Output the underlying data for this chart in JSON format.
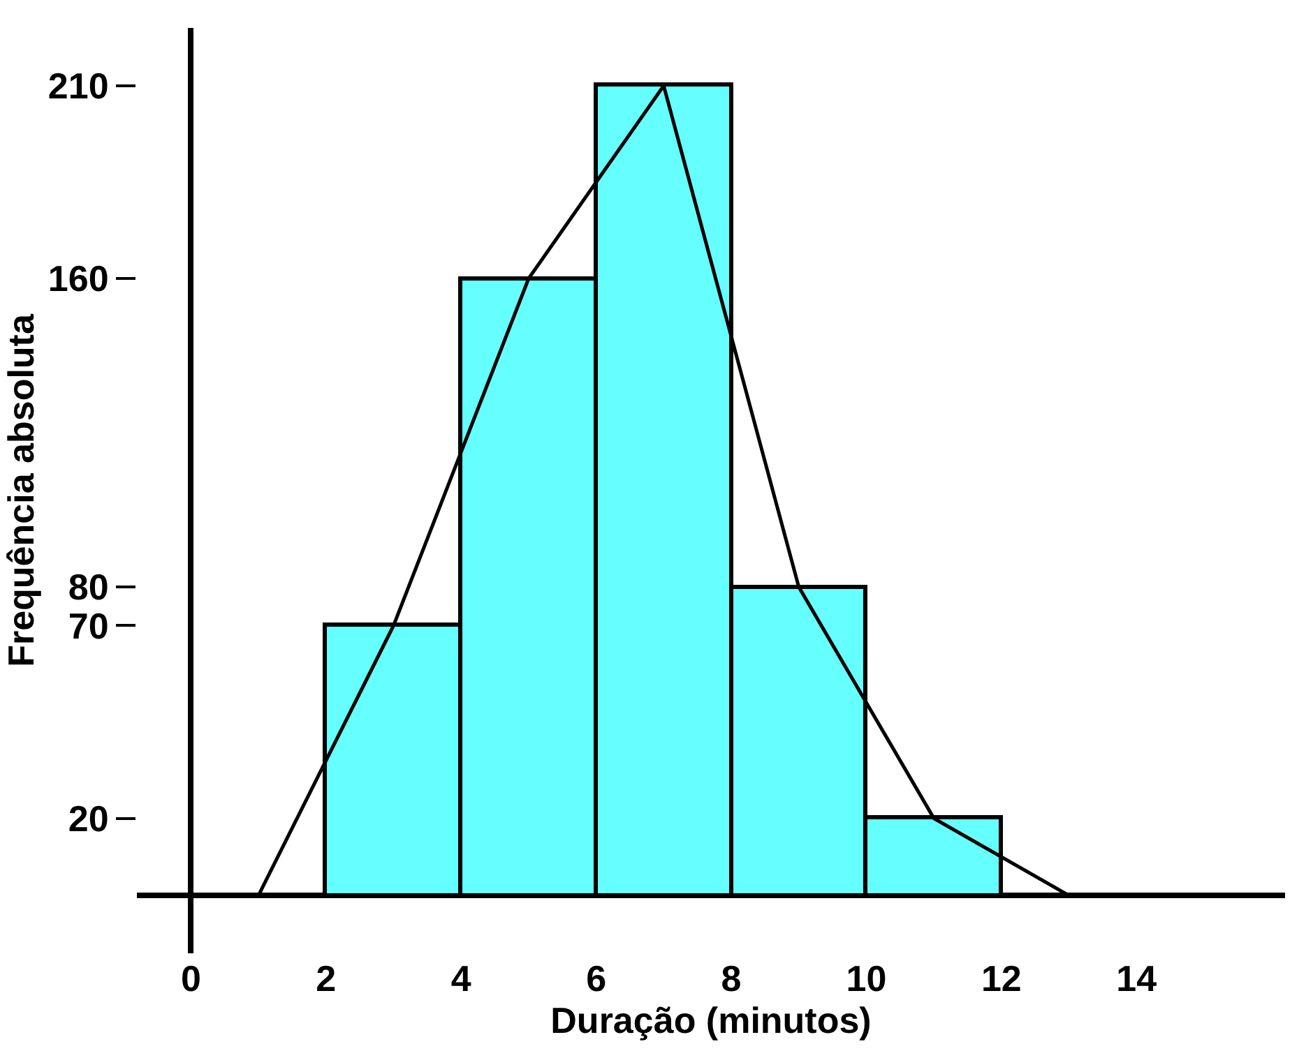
{
  "chart_data": {
    "type": "histogram",
    "xlabel": "Duração (minutos)",
    "ylabel": "Frequência absoluta",
    "bins": [
      2,
      4,
      6,
      8,
      10,
      12
    ],
    "values": [
      70,
      160,
      210,
      80,
      20
    ],
    "color": "#66ffff",
    "series": [
      {
        "type": "line",
        "color": "#000000",
        "x": [
          1,
          3,
          5,
          7,
          9,
          11,
          13
        ],
        "values": [
          0,
          70,
          160,
          210,
          80,
          20,
          0
        ]
      }
    ],
    "xlim": [
      -0.8,
      16.2
    ],
    "ylim": [
      -15,
      225
    ],
    "xticks": [
      0,
      2,
      4,
      6,
      8,
      10,
      12,
      14
    ],
    "yticks": [
      20,
      70,
      80,
      160,
      210
    ]
  }
}
